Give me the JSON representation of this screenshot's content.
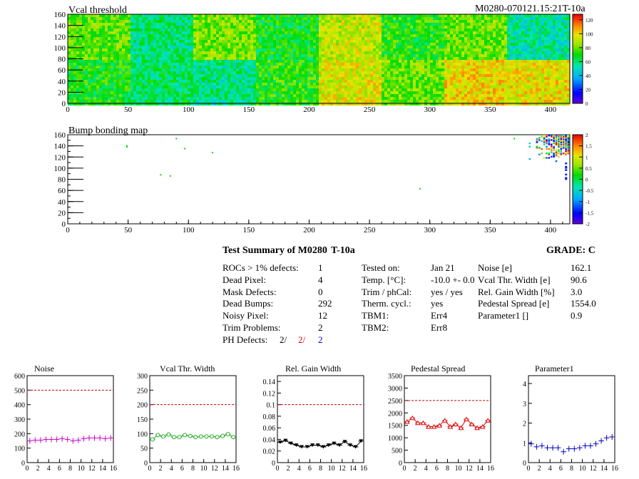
{
  "colors": {
    "magenta": "#cc00cc",
    "green": "#22aa22",
    "black": "#000000",
    "red": "#dd0000",
    "blue": "#0000cc",
    "dashed": "#cc0000"
  },
  "header": {
    "module_label": "M0280-070121.15:21T-10a"
  },
  "summary": {
    "title": "Test Summary of M0280",
    "test": "T-10a",
    "grade": "GRADE:  C",
    "left_rows": [
      {
        "label": "ROCs > 1% defects:",
        "value": "1"
      },
      {
        "label": "Dead Pixel:",
        "value": "4"
      },
      {
        "label": "Mask Defects:",
        "value": "0"
      },
      {
        "label": "Dead Bumps:",
        "value": "292"
      },
      {
        "label": "Noisy Pixel:",
        "value": "12"
      },
      {
        "label": "Trim Problems:",
        "value": "2"
      }
    ],
    "ph_defects": {
      "label": "PH Defects:",
      "v1": "2/",
      "v2": "2/",
      "v3": "2"
    },
    "mid_rows": [
      {
        "label": "Tested on:",
        "value": "Jan 21"
      },
      {
        "label": "Temp. [°C]:",
        "value": "-10.0 +- 0.0"
      },
      {
        "label": "Trim / phCal:",
        "value": "yes / yes"
      },
      {
        "label": "Therm. cycl.:",
        "value": "yes"
      },
      {
        "label": "TBM1:",
        "value": "Err4"
      },
      {
        "label": "TBM2:",
        "value": "Err8"
      }
    ],
    "right_rows": [
      {
        "label": "Noise [e]",
        "value": "162.1"
      },
      {
        "label": "Vcal Thr. Width [e]",
        "value": "90.6"
      },
      {
        "label": "Rel. Gain Width [%]",
        "value": "3.0"
      },
      {
        "label": "Pedestal Spread [e]",
        "value": "1554.0"
      },
      {
        "label": "Parameter1 []",
        "value": "0.9"
      }
    ]
  },
  "chart_data": [
    {
      "type": "heatmap",
      "title": "Vcal threshold",
      "xlim": [
        0,
        416
      ],
      "ylim": [
        0,
        160
      ],
      "xticks": [
        0,
        50,
        100,
        150,
        200,
        250,
        300,
        350,
        400
      ],
      "yticks": [
        0,
        20,
        40,
        60,
        80,
        100,
        120,
        140,
        160
      ],
      "zlim": [
        0,
        128
      ],
      "zticks": [
        0,
        20,
        40,
        60,
        80,
        100,
        120
      ],
      "roc_blocks_top": [
        78,
        60,
        82,
        68,
        92,
        72,
        80,
        55
      ],
      "roc_blocks_bottom": [
        70,
        62,
        58,
        72,
        95,
        80,
        100,
        98
      ]
    },
    {
      "type": "heatmap",
      "title": "Bump bonding map",
      "xlim": [
        0,
        416
      ],
      "ylim": [
        0,
        160
      ],
      "xticks": [
        0,
        50,
        100,
        150,
        200,
        250,
        300,
        350,
        400
      ],
      "yticks": [
        0,
        20,
        40,
        60,
        80,
        100,
        120,
        140,
        160
      ],
      "zlim": [
        -2,
        2
      ],
      "zticks": [
        -2,
        -1.5,
        -1,
        -0.5,
        0,
        0.5,
        1,
        1.5,
        2
      ],
      "defects": [
        [
          49,
          138
        ],
        [
          49,
          140
        ],
        [
          90,
          153
        ],
        [
          97,
          135
        ],
        [
          120,
          128
        ],
        [
          77,
          88
        ],
        [
          85,
          86
        ],
        [
          292,
          63
        ],
        [
          370,
          153
        ],
        [
          375,
          160
        ]
      ]
    },
    {
      "type": "scatter",
      "title": "Noise",
      "x": [
        0,
        1,
        2,
        3,
        4,
        5,
        6,
        7,
        8,
        9,
        10,
        11,
        12,
        13,
        14,
        15
      ],
      "y": [
        150,
        155,
        155,
        160,
        160,
        160,
        165,
        160,
        150,
        155,
        165,
        170,
        170,
        170,
        165,
        170
      ],
      "xlim": [
        0,
        16
      ],
      "ylim": [
        0,
        600
      ],
      "yticks": [
        0,
        100,
        200,
        300,
        400,
        500,
        600
      ],
      "reference": 500,
      "marker": "cross",
      "color": "#cc00cc"
    },
    {
      "type": "line",
      "title": "Vcal Thr. Width",
      "x": [
        0,
        1,
        2,
        3,
        4,
        5,
        6,
        7,
        8,
        9,
        10,
        11,
        12,
        13,
        14,
        15
      ],
      "y": [
        80,
        95,
        90,
        97,
        88,
        88,
        95,
        92,
        88,
        90,
        90,
        90,
        88,
        92,
        98,
        88
      ],
      "xlim": [
        0,
        16
      ],
      "ylim": [
        0,
        300
      ],
      "yticks": [
        0,
        50,
        100,
        150,
        200,
        250,
        300
      ],
      "reference": 200,
      "marker": "circle",
      "color": "#22aa22"
    },
    {
      "type": "line",
      "title": "Rel. Gain Width",
      "x": [
        0,
        1,
        2,
        3,
        4,
        5,
        6,
        7,
        8,
        9,
        10,
        11,
        12,
        13,
        14,
        15
      ],
      "y": [
        0.035,
        0.038,
        0.033,
        0.03,
        0.027,
        0.027,
        0.03,
        0.03,
        0.027,
        0.03,
        0.033,
        0.03,
        0.036,
        0.03,
        0.027,
        0.037
      ],
      "xlim": [
        0,
        16
      ],
      "ylim": [
        0,
        0.15
      ],
      "yticks": [
        0,
        0.02,
        0.04,
        0.06,
        0.08,
        0.1,
        0.12,
        0.14
      ],
      "reference": 0.1,
      "marker": "triangle",
      "color": "#000000"
    },
    {
      "type": "line",
      "title": "Pedestal Spread",
      "x": [
        0,
        1,
        2,
        3,
        4,
        5,
        6,
        7,
        8,
        9,
        10,
        11,
        12,
        13,
        14,
        15
      ],
      "y": [
        1650,
        1800,
        1600,
        1600,
        1450,
        1450,
        1500,
        1700,
        1450,
        1550,
        1400,
        1750,
        1550,
        1400,
        1450,
        1700
      ],
      "xlim": [
        0,
        16
      ],
      "ylim": [
        0,
        3500
      ],
      "yticks": [
        0,
        500,
        1000,
        1500,
        2000,
        2500,
        3000,
        3500
      ],
      "reference": 2500,
      "marker": "triangle-open",
      "color": "#dd0000"
    },
    {
      "type": "scatter",
      "title": "Parameter1",
      "x": [
        0,
        1,
        2,
        3,
        4,
        5,
        6,
        7,
        8,
        9,
        10,
        11,
        12,
        13,
        14,
        15
      ],
      "y": [
        0.95,
        0.8,
        0.85,
        0.75,
        0.75,
        0.75,
        0.55,
        0.7,
        0.7,
        0.75,
        0.85,
        0.85,
        0.95,
        1.1,
        1.25,
        1.3
      ],
      "xlim": [
        0,
        16
      ],
      "ylim": [
        0,
        4.4
      ],
      "yticks": [
        0,
        1,
        2,
        3,
        4
      ],
      "reference": null,
      "marker": "cross",
      "color": "#0000cc"
    }
  ]
}
